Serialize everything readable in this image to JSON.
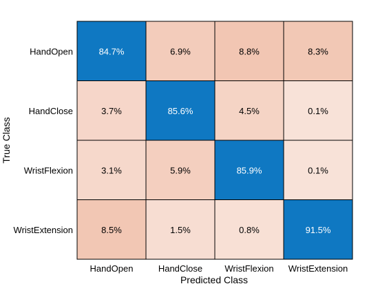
{
  "chart_data": {
    "type": "heatmap",
    "title": "",
    "xlabel": "Predicted Class",
    "ylabel": "True Class",
    "x_categories": [
      "HandOpen",
      "HandClose",
      "WristFlexion",
      "WristExtension"
    ],
    "y_categories": [
      "HandOpen",
      "HandClose",
      "WristFlexion",
      "WristExtension"
    ],
    "values": [
      [
        84.7,
        6.9,
        8.8,
        8.3
      ],
      [
        3.7,
        85.6,
        4.5,
        0.1
      ],
      [
        3.1,
        5.9,
        85.9,
        0.1
      ],
      [
        8.5,
        1.5,
        0.8,
        91.5
      ]
    ],
    "value_labels": [
      [
        "84.7%",
        "6.9%",
        "8.8%",
        "8.3%"
      ],
      [
        "3.7%",
        "85.6%",
        "4.5%",
        "0.1%"
      ],
      [
        "3.1%",
        "5.9%",
        "85.9%",
        "0.1%"
      ],
      [
        "8.5%",
        "1.5%",
        "0.8%",
        "91.5%"
      ]
    ],
    "colors": {
      "diagonal": "#0f78c2",
      "diagonal_text": "#ffffff",
      "offdiag_low": "#f8e2d8",
      "offdiag_high": "#f2c6b3",
      "offdiag_text": "#000000",
      "grid_line": "#000000"
    },
    "grid": true
  }
}
